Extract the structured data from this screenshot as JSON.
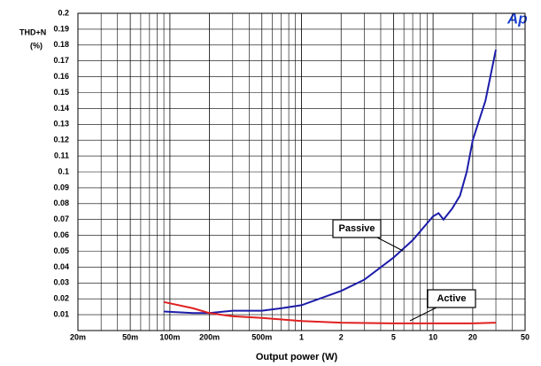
{
  "chart_data": {
    "type": "line",
    "logo": "Ap",
    "ylabel": [
      "THD+N",
      "(%)"
    ],
    "xlabel": "Output power (W)",
    "xlog": true,
    "grid": true,
    "xlim": [
      0.02,
      50
    ],
    "ylim": [
      0,
      0.2
    ],
    "xticks": [
      {
        "value": 0.02,
        "label": "20m"
      },
      {
        "value": 0.05,
        "label": "50m"
      },
      {
        "value": 0.1,
        "label": "100m"
      },
      {
        "value": 0.2,
        "label": "200m"
      },
      {
        "value": 0.5,
        "label": "500m"
      },
      1,
      2,
      5,
      10,
      20,
      50
    ],
    "yticks": [
      0.01,
      0.02,
      0.03,
      0.04,
      0.05,
      0.06,
      0.07,
      0.08,
      0.09,
      0.1,
      0.11,
      0.12,
      0.13,
      0.14,
      0.15,
      0.16,
      0.17,
      0.18,
      0.19,
      0.2
    ],
    "series": [
      {
        "name": "Passive",
        "color": "#1c1caa",
        "x": [
          0.09,
          0.15,
          0.2,
          0.3,
          0.5,
          0.7,
          1,
          2,
          3,
          5,
          7,
          10,
          11,
          12,
          14,
          16,
          18,
          20,
          25,
          30
        ],
        "values": [
          0.012,
          0.011,
          0.011,
          0.0125,
          0.0125,
          0.014,
          0.016,
          0.025,
          0.032,
          0.046,
          0.057,
          0.072,
          0.074,
          0.07,
          0.077,
          0.085,
          0.1,
          0.12,
          0.145,
          0.177
        ]
      },
      {
        "name": "Active",
        "color": "#e02020",
        "x": [
          0.09,
          0.15,
          0.2,
          0.3,
          0.5,
          1,
          2,
          5,
          10,
          20,
          30
        ],
        "values": [
          0.018,
          0.014,
          0.011,
          0.009,
          0.008,
          0.006,
          0.005,
          0.0045,
          0.0045,
          0.0045,
          0.005
        ]
      }
    ]
  }
}
